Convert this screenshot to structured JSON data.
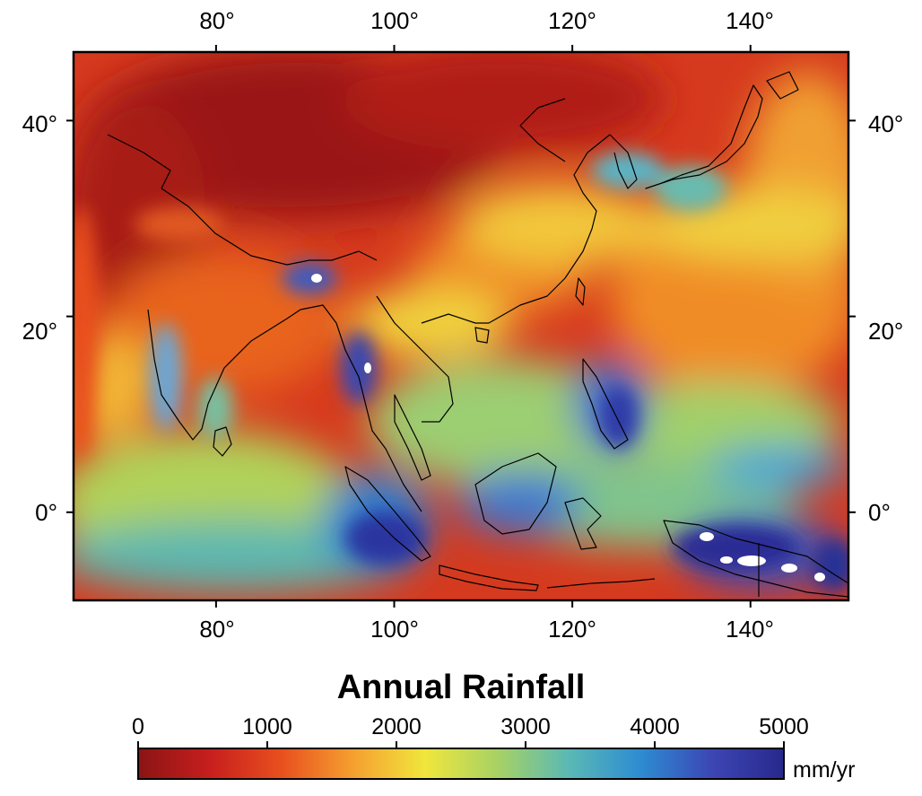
{
  "map": {
    "title": "Annual Rainfall",
    "lon_labels": [
      "80°",
      "100°",
      "120°",
      "140°"
    ],
    "lon_values": [
      80,
      100,
      120,
      140
    ],
    "lat_labels": [
      "40°",
      "20°",
      "0°"
    ],
    "lat_values": [
      40,
      20,
      0
    ],
    "extent": {
      "lon_min": 64,
      "lon_max": 151,
      "lat_min": -9,
      "lat_max": 47
    }
  },
  "colorbar": {
    "ticks": [
      "0",
      "1000",
      "2000",
      "3000",
      "4000",
      "5000"
    ],
    "unit": "mm/yr",
    "range": [
      0,
      5000
    ],
    "colors": [
      "#8b1414",
      "#c81e1e",
      "#e8501e",
      "#f5a030",
      "#f0e63c",
      "#a8d264",
      "#5ab9b4",
      "#2d8cd2",
      "#3c46b4",
      "#28288c"
    ]
  }
}
